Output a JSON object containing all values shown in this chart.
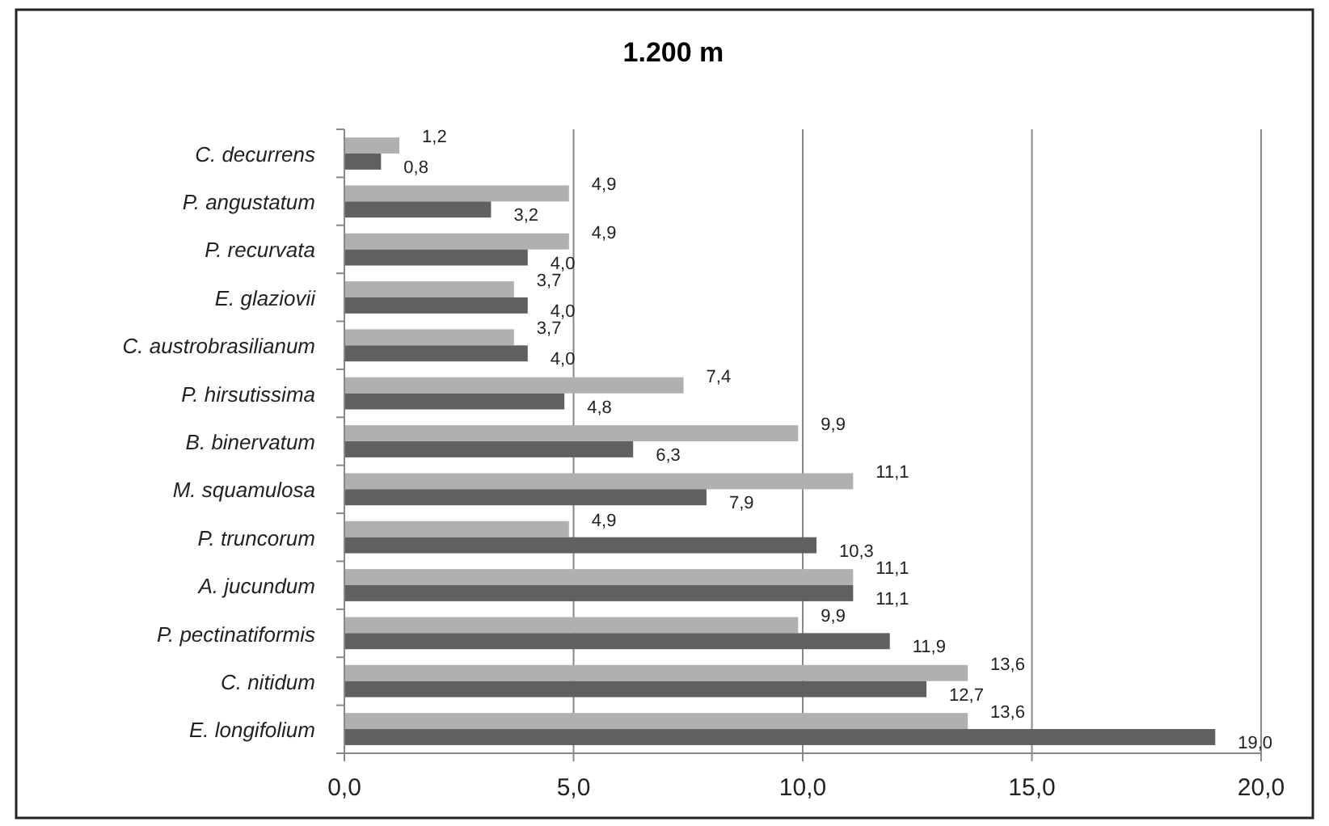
{
  "chart_data": {
    "type": "bar",
    "orientation": "horizontal",
    "title": "1.200 m",
    "categories": [
      "C. decurrens",
      "P. angustatum",
      "P. recurvata",
      "E. glaziovii",
      "C. austrobrasilianum",
      "P. hirsutissima",
      "B. binervatum",
      "M. squamulosa",
      "P. truncorum",
      "A. jucundum",
      "P. pectinatiformis",
      "C. nitidum",
      "E. longifolium"
    ],
    "series": [
      {
        "color": "#b0b0b0",
        "values": [
          1.2,
          4.9,
          4.9,
          3.7,
          3.7,
          7.4,
          9.9,
          11.1,
          4.9,
          11.1,
          9.9,
          13.6,
          13.6
        ],
        "value_labels": [
          "1,2",
          "4,9",
          "4,9",
          "3,7",
          "3,7",
          "7,4",
          "9,9",
          "11,1",
          "4,9",
          "11,1",
          "9,9",
          "13,6",
          "13,6"
        ]
      },
      {
        "color": "#606060",
        "values": [
          0.8,
          3.2,
          4.0,
          4.0,
          4.0,
          4.8,
          6.3,
          7.9,
          10.3,
          11.1,
          11.9,
          12.7,
          19.0
        ],
        "value_labels": [
          "0,8",
          "3,2",
          "4,0",
          "4,0",
          "4,0",
          "4,8",
          "6,3",
          "7,9",
          "10,3",
          "11,1",
          "11,9",
          "12,7",
          "19,0"
        ]
      }
    ],
    "xlim": [
      0,
      20
    ],
    "xticks": [
      {
        "value": 0,
        "label": "0,0"
      },
      {
        "value": 5,
        "label": "5,0"
      },
      {
        "value": 10,
        "label": "10,0"
      },
      {
        "value": 15,
        "label": "15,0"
      },
      {
        "value": 20,
        "label": "20,0"
      }
    ],
    "grid": "x"
  }
}
